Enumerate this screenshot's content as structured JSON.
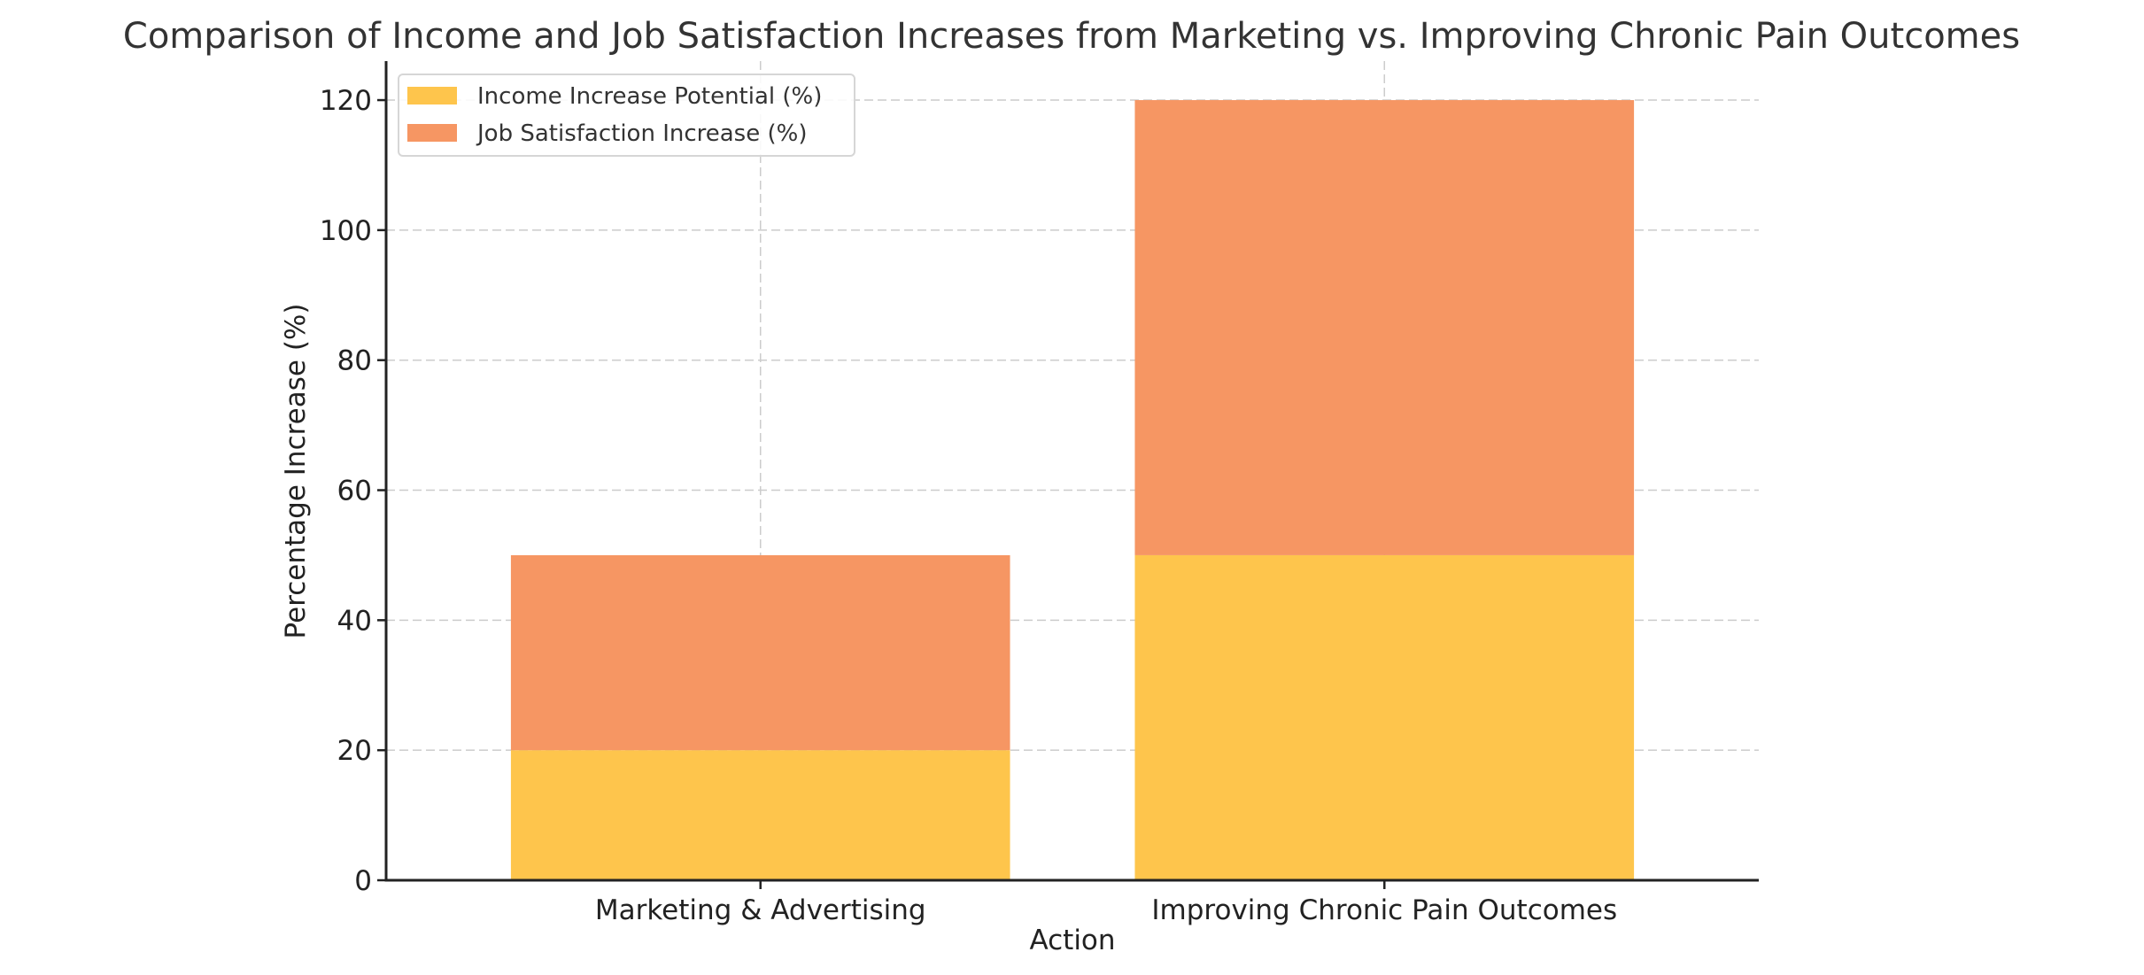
{
  "chart_data": {
    "type": "bar",
    "stacked": true,
    "title": "Comparison of Income and Job Satisfaction Increases from Marketing vs. Improving Chronic Pain Outcomes",
    "xlabel": "Action",
    "ylabel": "Percentage Increase (%)",
    "categories": [
      "Marketing & Advertising",
      "Improving Chronic Pain Outcomes"
    ],
    "series": [
      {
        "name": "Income Increase Potential (%)",
        "color": "#FEC54C",
        "values": [
          20,
          50
        ]
      },
      {
        "name": "Job Satisfaction Increase (%)",
        "color": "#F69663",
        "values": [
          30,
          70
        ]
      }
    ],
    "ylim": [
      0,
      126
    ],
    "yticks": [
      0,
      20,
      40,
      60,
      80,
      100,
      120
    ],
    "grid": true,
    "legend_position": "top-left"
  }
}
